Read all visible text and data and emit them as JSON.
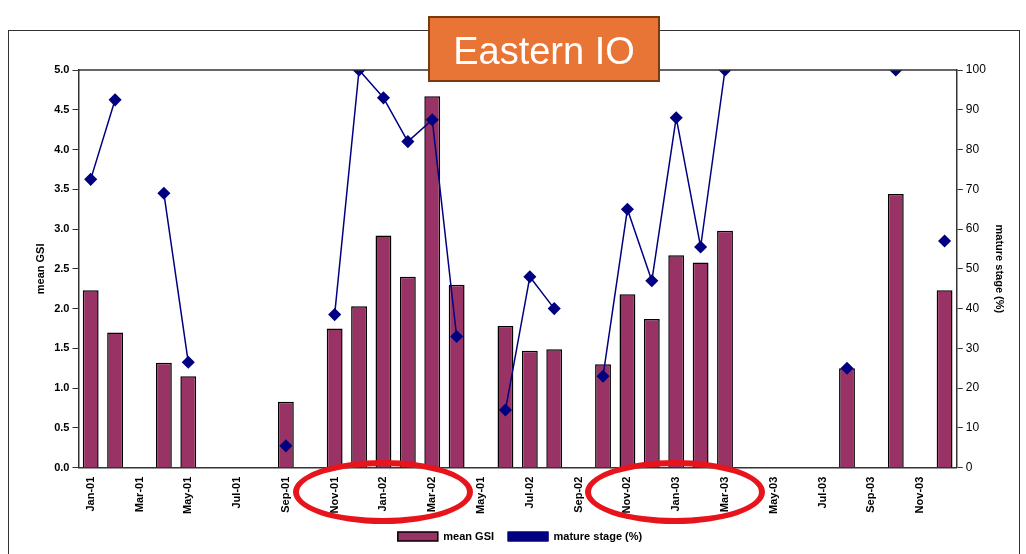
{
  "chart_data": {
    "type": "bar",
    "title": "Eastern IO",
    "ylabel": "mean GSI",
    "y2label": "mature stage (%)",
    "categories": [
      "Jan-01",
      null,
      "Mar-01",
      null,
      "May-01",
      null,
      "Jul-01",
      null,
      "Sep-01",
      null,
      "Nov-01",
      null,
      "Jan-02",
      null,
      "Mar-02",
      null,
      "May-01",
      null,
      "Jul-02",
      null,
      "Sep-02",
      null,
      "Nov-02",
      null,
      "Jan-03",
      null,
      "Mar-03",
      null,
      "May-03",
      null,
      "Jul-03",
      null,
      "Sep-03",
      null,
      "Nov-03",
      null
    ],
    "series": [
      {
        "name": "mean GSI",
        "color": "#993366",
        "values": [
          2.23,
          1.7,
          null,
          1.32,
          1.15,
          null,
          null,
          null,
          0.83,
          null,
          1.75,
          2.03,
          2.92,
          2.4,
          4.67,
          2.3,
          null,
          1.78,
          1.47,
          1.49,
          null,
          1.3,
          2.18,
          1.87,
          2.67,
          2.58,
          2.98,
          null,
          null,
          null,
          null,
          1.25,
          null,
          3.44,
          null,
          2.23
        ]
      },
      {
        "name": "mature stage (%)",
        "type": "line",
        "axis": "y2",
        "color": "#000080",
        "marker": "diamond",
        "values": [
          72.5,
          92.5,
          null,
          69,
          26.5,
          null,
          null,
          null,
          5.5,
          null,
          38.5,
          100,
          93,
          82,
          87.5,
          33,
          null,
          14.5,
          48,
          40,
          null,
          23,
          65,
          47,
          88,
          55.5,
          100,
          null,
          null,
          null,
          null,
          25,
          null,
          100,
          null,
          57
        ]
      }
    ],
    "ylim": [
      0,
      5
    ],
    "yticks": [
      {
        "value": 0,
        "label": "0.0"
      },
      0.5,
      {
        "value": 1,
        "label": "1.0"
      },
      1.5,
      {
        "value": 2,
        "label": "2.0"
      },
      2.5,
      {
        "value": 3,
        "label": "3.0"
      },
      3.5,
      {
        "value": 4,
        "label": "4.0"
      },
      4.5,
      {
        "value": 5,
        "label": "5.0"
      }
    ],
    "y2lim": [
      0,
      100
    ],
    "y2ticks": [
      0,
      10,
      20,
      30,
      40,
      50,
      60,
      70,
      80,
      90,
      100
    ],
    "grid": false,
    "legend": "bottom"
  }
}
